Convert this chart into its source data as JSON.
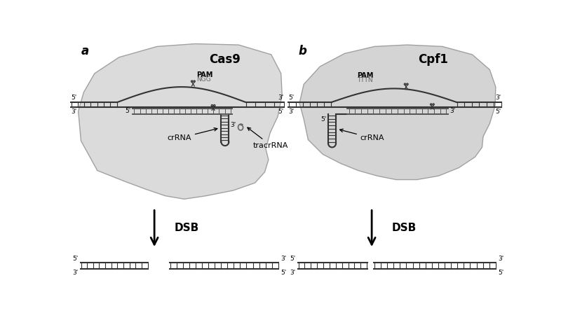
{
  "bg_color": "#ffffff",
  "cas9_blob_color": "#d8d8d8",
  "cpf1_blob_color": "#d0d0d0",
  "dna_color": "#333333",
  "guide_color": "#555555",
  "label_a": "a",
  "label_b": "b",
  "cas9_title": "Cas9",
  "cpf1_title": "Cpf1",
  "pam_cas9": "PAM",
  "ngg": "NGG",
  "pam_cpf1": "PAM",
  "tttn": "TTTN",
  "crRNA": "crRNA",
  "tracrRNA": "tracrRNA",
  "crRNA_b": "crRNA",
  "dsb": "DSB",
  "five": "5'",
  "three": "3'",
  "gray_blob": "#cccccc",
  "edge_color": "#999999"
}
